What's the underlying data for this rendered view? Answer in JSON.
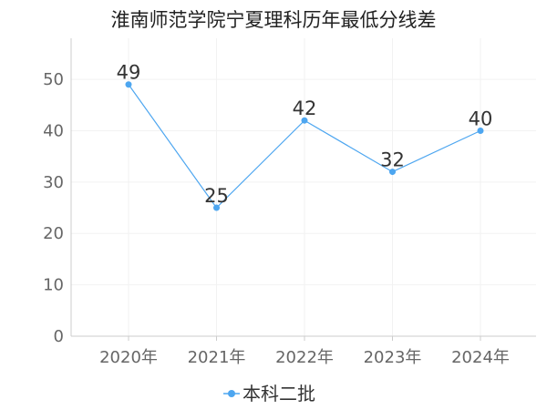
{
  "chart_data": {
    "type": "line",
    "title": "淮南师范学院宁夏理科历年最低分线差",
    "categories": [
      "2020年",
      "2021年",
      "2022年",
      "2023年",
      "2024年"
    ],
    "series": [
      {
        "name": "本科二批",
        "values": [
          49,
          25,
          42,
          32,
          40
        ]
      }
    ],
    "ylim": [
      0,
      58
    ],
    "yticks": [
      0,
      10,
      20,
      30,
      40,
      50
    ],
    "grid": true,
    "legend_position": "bottom-center",
    "data_labels": true,
    "xlabel": "",
    "ylabel": ""
  },
  "colors": {
    "series": "#4da6f0",
    "axis": "#cccccc",
    "grid": "#f2f2f2",
    "text": "#666666"
  }
}
